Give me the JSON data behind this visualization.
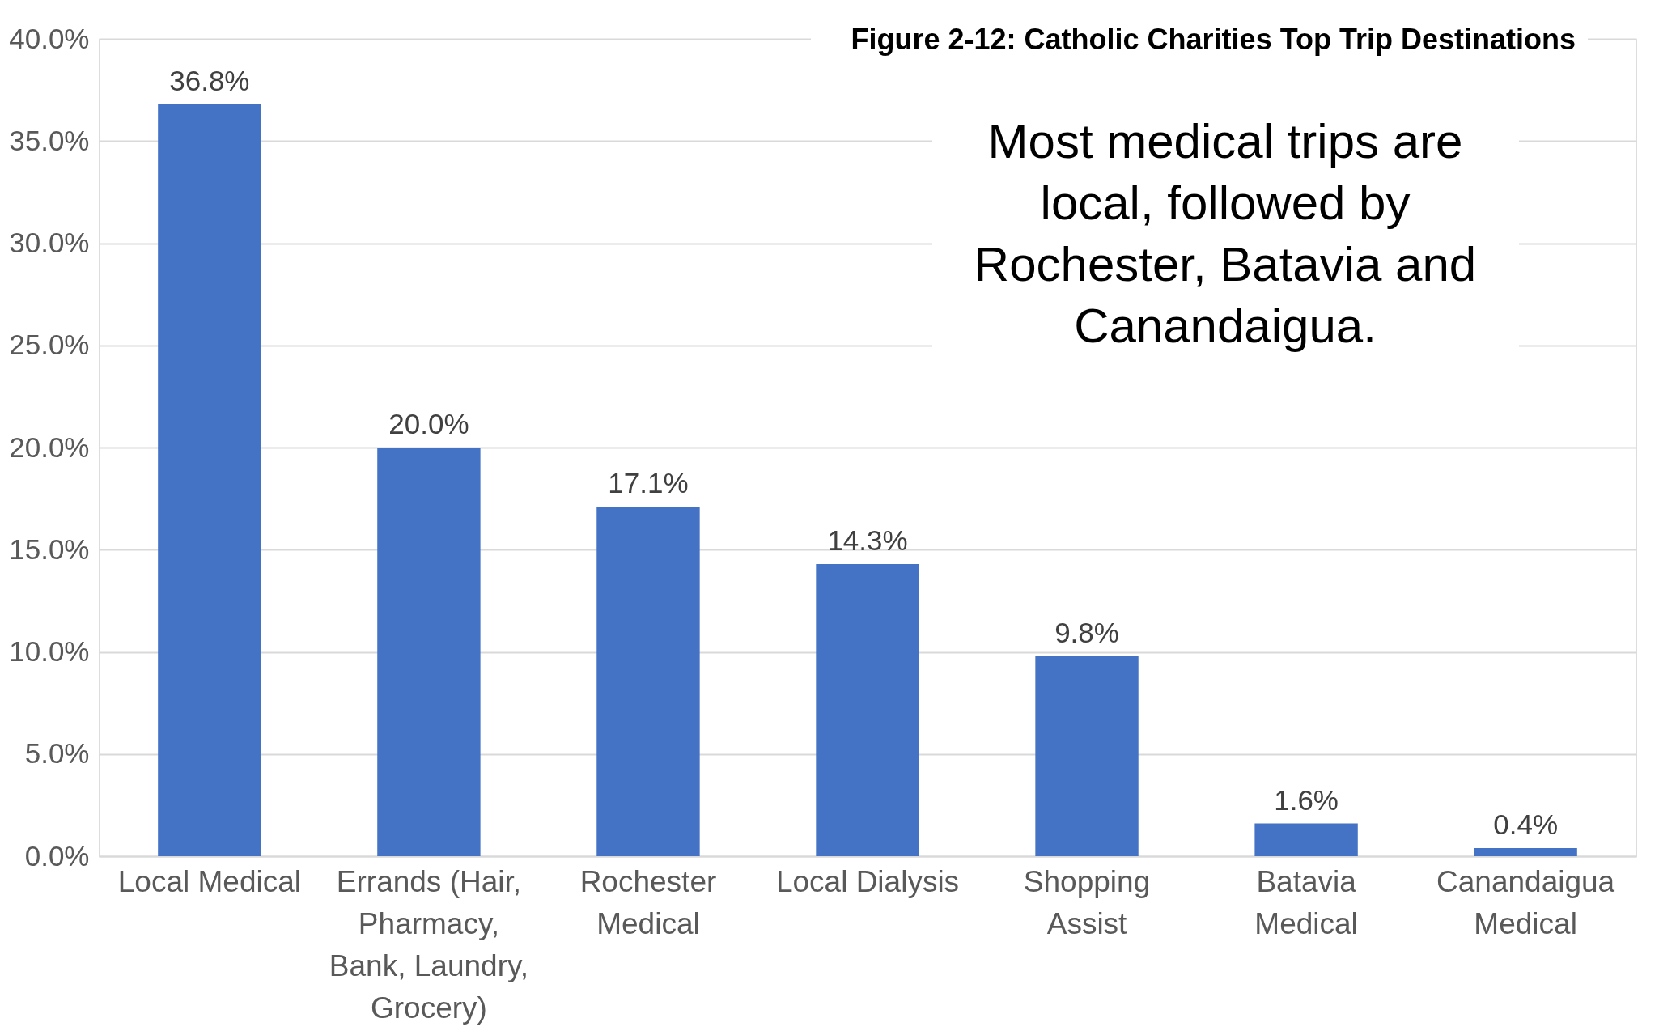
{
  "chart_data": {
    "type": "bar",
    "title": "Figure 2-12: Catholic Charities Top Trip Destinations",
    "categories": [
      "Local Medical",
      "Errands (Hair, Pharmacy, Bank, Laundry, Grocery)",
      "Rochester Medical",
      "Local Dialysis",
      "Shopping Assist",
      "Batavia Medical",
      "Canandaigua Medical"
    ],
    "values": [
      36.8,
      20.0,
      17.1,
      14.3,
      9.8,
      1.6,
      0.4
    ],
    "value_labels": [
      "36.8%",
      "20.0%",
      "17.1%",
      "14.3%",
      "9.8%",
      "1.6%",
      "0.4%"
    ],
    "color": "#4472c4",
    "ylim": [
      0,
      40
    ],
    "yticks": [
      {
        "value": 0,
        "label": "0.0%"
      },
      {
        "value": 5,
        "label": "5.0%"
      },
      {
        "value": 10,
        "label": "10.0%"
      },
      {
        "value": 15,
        "label": "15.0%"
      },
      {
        "value": 20,
        "label": "20.0%"
      },
      {
        "value": 25,
        "label": "25.0%"
      },
      {
        "value": 30,
        "label": "30.0%"
      },
      {
        "value": 35,
        "label": "35.0%"
      },
      {
        "value": 40,
        "label": "40.0%"
      }
    ],
    "grid": "y",
    "annotations": [
      "Most medical trips are local, followed by Rochester, Batavia and Canandaigua."
    ]
  }
}
